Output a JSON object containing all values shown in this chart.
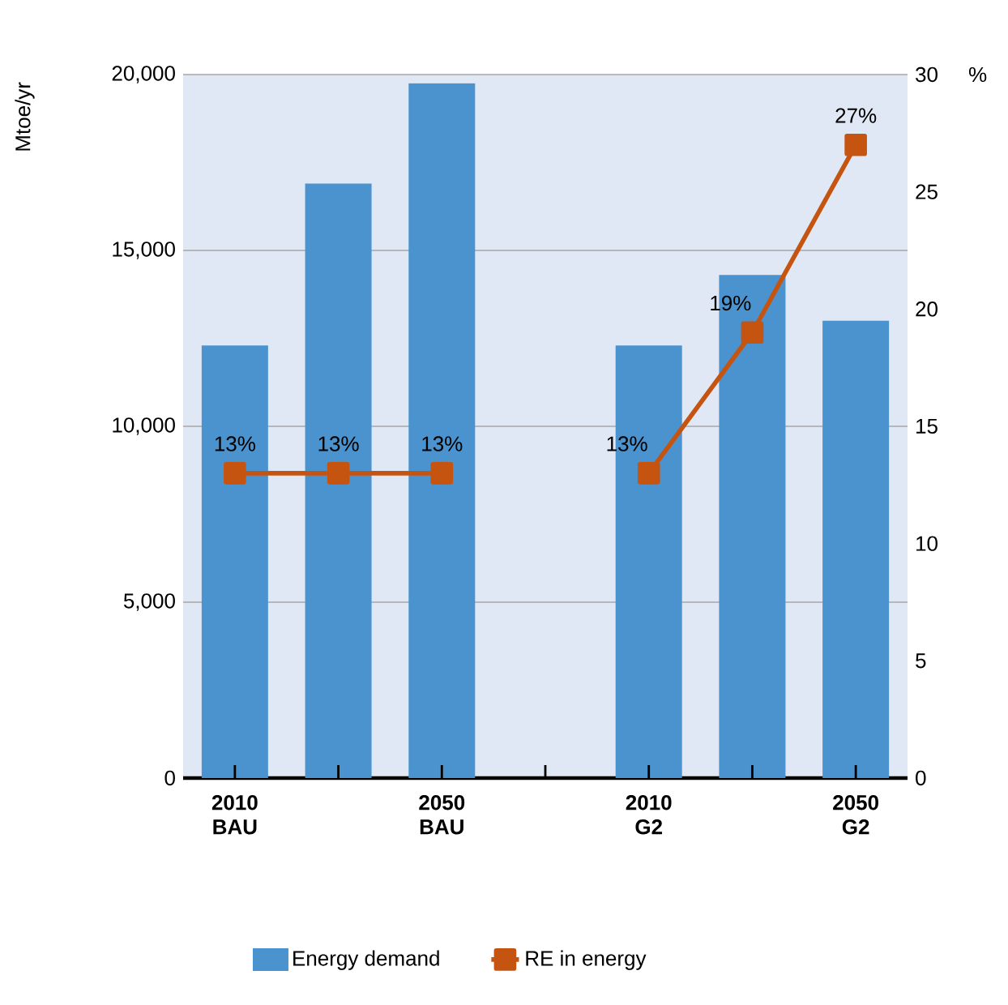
{
  "chart_data": {
    "type": "bar",
    "categories": [
      "2010 BAU",
      null,
      "2050 BAU",
      null,
      "2010 G2",
      null,
      "2050 G2"
    ],
    "ylabel": "Mtoe/yr",
    "y2label": "%",
    "series": [
      {
        "name": "Energy demand",
        "color": "#4a93cf",
        "values": [
          12300,
          16900,
          19750,
          null,
          12300,
          14300,
          13000
        ]
      },
      {
        "name": "RE in energy",
        "type": "line",
        "axis": "y2",
        "color": "#c65411",
        "marker": "square",
        "values": [
          13,
          13,
          13,
          null,
          13,
          19,
          27
        ],
        "value_labels": [
          "13%",
          "13%",
          "13%",
          null,
          "13%",
          "19%",
          "27%"
        ]
      }
    ],
    "ylim": [
      0,
      20000
    ],
    "yticks": [
      {
        "value": 0,
        "label": "0"
      },
      {
        "value": 5000,
        "label": "5,000"
      },
      {
        "value": 10000,
        "label": "10,000"
      },
      {
        "value": 15000,
        "label": "15,000"
      },
      {
        "value": 20000,
        "label": "20,000"
      }
    ],
    "y2lim": [
      0,
      30
    ],
    "y2ticks": [
      0,
      5,
      10,
      15,
      20,
      25,
      30
    ],
    "grid": "y",
    "legend": "bottom"
  }
}
